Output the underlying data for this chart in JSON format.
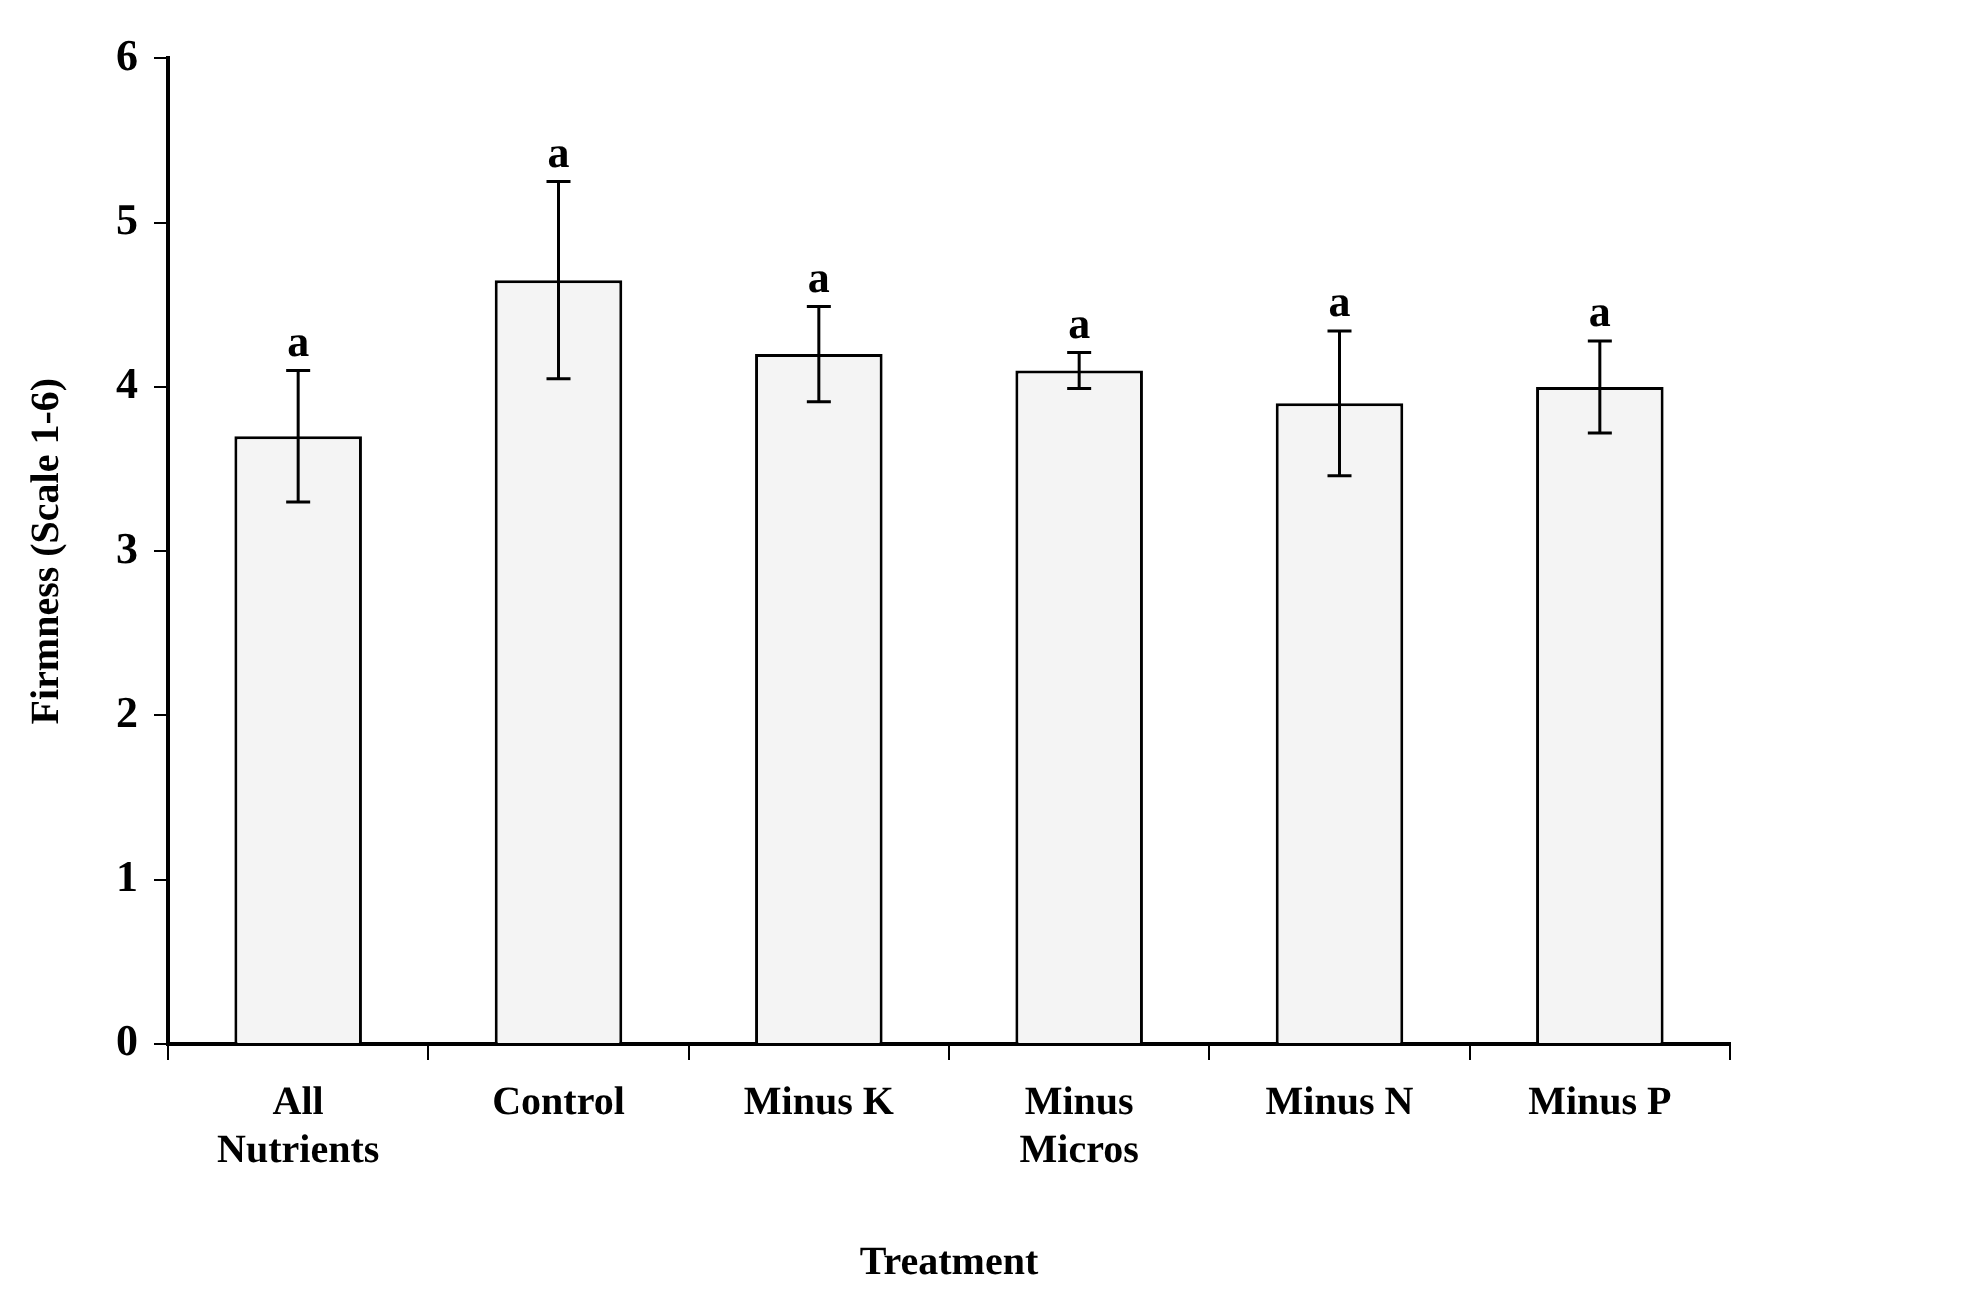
{
  "chart_data": {
    "type": "bar",
    "xlabel": "Treatment",
    "ylabel": "Firmness (Scale 1-6)",
    "categories": [
      "All Nutrients",
      "Control",
      "Minus K",
      "Minus Micros",
      "Minus N",
      "Minus P"
    ],
    "values": [
      3.7,
      4.65,
      4.2,
      4.1,
      3.9,
      4.0
    ],
    "errors": [
      0.4,
      0.6,
      0.29,
      0.11,
      0.44,
      0.28
    ],
    "color": "#f4f4f4",
    "ylim": [
      0,
      6
    ],
    "yticks": [
      0,
      1,
      2,
      3,
      4,
      5,
      6
    ],
    "grid": false,
    "legend": false,
    "annotations": [
      {
        "text": "a",
        "x": "All Nutrients",
        "y": 4.1
      },
      {
        "text": "a",
        "x": "Control",
        "y": 5.25
      },
      {
        "text": "a",
        "x": "Minus K",
        "y": 4.49
      },
      {
        "text": "a",
        "x": "Minus Micros",
        "y": 4.21
      },
      {
        "text": "a",
        "x": "Minus N",
        "y": 4.34
      },
      {
        "text": "a",
        "x": "Minus P",
        "y": 4.28
      }
    ]
  }
}
